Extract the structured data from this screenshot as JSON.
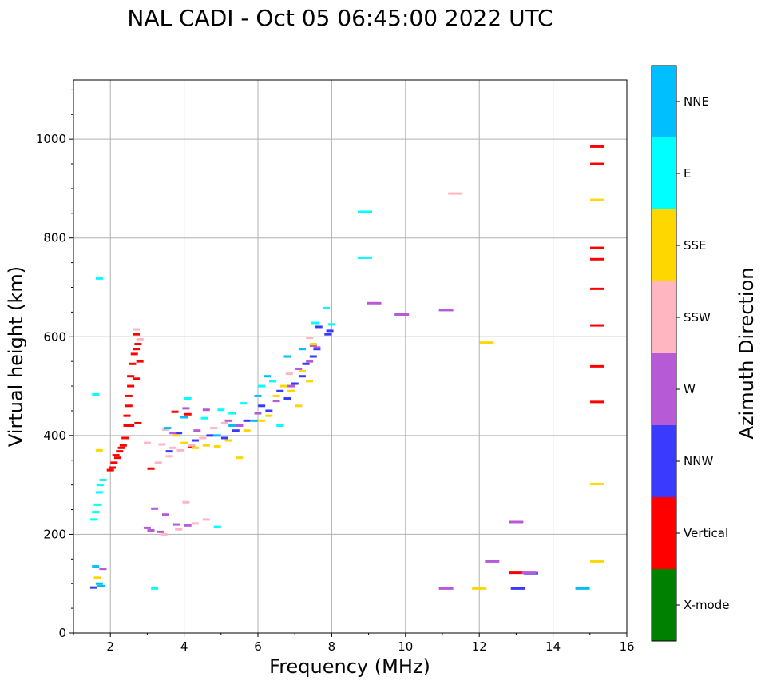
{
  "chart_data": {
    "type": "scatter",
    "title": "NAL CADI - Oct 05 06:45:00 2022 UTC",
    "xlabel": "Frequency (MHz)",
    "ylabel": "Virtual height (km)",
    "xlim": [
      1,
      16
    ],
    "ylim": [
      0,
      1120
    ],
    "grid": true,
    "xticks": [
      2,
      4,
      6,
      8,
      10,
      12,
      14,
      16
    ],
    "yticks": [
      0,
      200,
      400,
      600,
      800,
      1000
    ],
    "colorbar": {
      "label": "Azimuth Direction",
      "categories": [
        {
          "name": "X-mode",
          "color": "#008000"
        },
        {
          "name": "Vertical",
          "color": "#ff0000"
        },
        {
          "name": "NNW",
          "color": "#3a3aff"
        },
        {
          "name": "W",
          "color": "#b65ad6"
        },
        {
          "name": "SSW",
          "color": "#ffb6c1"
        },
        {
          "name": "SSE",
          "color": "#ffd700"
        },
        {
          "name": "E",
          "color": "#00ffff"
        },
        {
          "name": "NNE",
          "color": "#00bfff"
        }
      ]
    },
    "series": [
      {
        "name": "Vertical",
        "points": [
          [
            2.0,
            330
          ],
          [
            2.05,
            335
          ],
          [
            2.1,
            345
          ],
          [
            2.15,
            360
          ],
          [
            2.2,
            355
          ],
          [
            2.25,
            368
          ],
          [
            2.3,
            375
          ],
          [
            2.35,
            380
          ],
          [
            2.4,
            395
          ],
          [
            2.45,
            420
          ],
          [
            2.45,
            440
          ],
          [
            2.5,
            460
          ],
          [
            2.5,
            480
          ],
          [
            2.55,
            500
          ],
          [
            2.55,
            520
          ],
          [
            2.6,
            545
          ],
          [
            2.65,
            565
          ],
          [
            2.7,
            575
          ],
          [
            2.75,
            585
          ],
          [
            2.7,
            605
          ],
          [
            2.8,
            550
          ],
          [
            2.7,
            515
          ],
          [
            2.55,
            420
          ],
          [
            2.75,
            425
          ],
          [
            3.1,
            333
          ],
          [
            3.75,
            448
          ],
          [
            4.1,
            443
          ],
          [
            4.2,
            378
          ],
          [
            13.0,
            122
          ],
          [
            15.2,
            985
          ],
          [
            15.2,
            950
          ],
          [
            15.2,
            780
          ],
          [
            15.2,
            757
          ],
          [
            15.2,
            697
          ],
          [
            15.2,
            623
          ],
          [
            15.2,
            540
          ],
          [
            15.2,
            468
          ]
        ]
      },
      {
        "name": "NNW",
        "points": [
          [
            1.55,
            92
          ],
          [
            3.6,
            368
          ],
          [
            3.85,
            405
          ],
          [
            4.3,
            390
          ],
          [
            4.7,
            400
          ],
          [
            5.1,
            395
          ],
          [
            5.4,
            410
          ],
          [
            5.7,
            430
          ],
          [
            6.1,
            460
          ],
          [
            6.3,
            450
          ],
          [
            6.6,
            490
          ],
          [
            6.8,
            475
          ],
          [
            7.0,
            505
          ],
          [
            7.2,
            520
          ],
          [
            7.3,
            545
          ],
          [
            7.5,
            560
          ],
          [
            7.6,
            575
          ],
          [
            7.65,
            620
          ],
          [
            7.95,
            612
          ],
          [
            7.9,
            605
          ],
          [
            13.05,
            90
          ],
          [
            13.4,
            121
          ]
        ]
      },
      {
        "name": "W",
        "points": [
          [
            1.8,
            130
          ],
          [
            3.0,
            213
          ],
          [
            3.1,
            208
          ],
          [
            3.2,
            252
          ],
          [
            3.35,
            205
          ],
          [
            3.5,
            240
          ],
          [
            3.8,
            220
          ],
          [
            4.1,
            218
          ],
          [
            3.7,
            405
          ],
          [
            4.05,
            455
          ],
          [
            4.35,
            410
          ],
          [
            4.6,
            452
          ],
          [
            5.2,
            430
          ],
          [
            5.5,
            420
          ],
          [
            6.0,
            445
          ],
          [
            6.5,
            470
          ],
          [
            6.9,
            500
          ],
          [
            7.1,
            535
          ],
          [
            7.4,
            550
          ],
          [
            7.5,
            582
          ],
          [
            7.6,
            578
          ],
          [
            9.15,
            668
          ],
          [
            9.9,
            645
          ],
          [
            11.1,
            90
          ],
          [
            11.1,
            654
          ],
          [
            12.35,
            145
          ],
          [
            13.0,
            225
          ],
          [
            13.35,
            122
          ]
        ]
      },
      {
        "name": "SSW",
        "points": [
          [
            3.0,
            385
          ],
          [
            3.4,
            382
          ],
          [
            3.7,
            375
          ],
          [
            3.9,
            370
          ],
          [
            4.2,
            380
          ],
          [
            4.5,
            395
          ],
          [
            4.8,
            415
          ],
          [
            5.1,
            425
          ],
          [
            3.5,
            412
          ],
          [
            3.3,
            345
          ],
          [
            3.6,
            358
          ],
          [
            4.05,
            265
          ],
          [
            4.3,
            222
          ],
          [
            4.6,
            230
          ],
          [
            3.85,
            210
          ],
          [
            3.45,
            200
          ],
          [
            2.7,
            615
          ],
          [
            2.8,
            595
          ],
          [
            11.35,
            890
          ],
          [
            6.85,
            525
          ],
          [
            7.4,
            598
          ]
        ]
      },
      {
        "name": "SSE",
        "points": [
          [
            1.65,
            112
          ],
          [
            1.7,
            370
          ],
          [
            3.8,
            400
          ],
          [
            4.0,
            385
          ],
          [
            4.3,
            375
          ],
          [
            4.6,
            380
          ],
          [
            4.9,
            378
          ],
          [
            5.2,
            390
          ],
          [
            5.5,
            355
          ],
          [
            5.7,
            410
          ],
          [
            6.1,
            430
          ],
          [
            6.3,
            440
          ],
          [
            6.5,
            480
          ],
          [
            6.7,
            500
          ],
          [
            6.9,
            490
          ],
          [
            7.1,
            460
          ],
          [
            7.2,
            530
          ],
          [
            7.4,
            510
          ],
          [
            7.5,
            585
          ],
          [
            12.0,
            90
          ],
          [
            12.2,
            588
          ],
          [
            15.2,
            877
          ],
          [
            15.2,
            302
          ],
          [
            15.2,
            145
          ]
        ]
      },
      {
        "name": "E",
        "points": [
          [
            1.55,
            230
          ],
          [
            1.6,
            245
          ],
          [
            1.65,
            260
          ],
          [
            1.7,
            285
          ],
          [
            1.72,
            300
          ],
          [
            1.8,
            310
          ],
          [
            1.7,
            718
          ],
          [
            1.6,
            483
          ],
          [
            3.2,
            90
          ],
          [
            4.1,
            475
          ],
          [
            4.55,
            435
          ],
          [
            5.0,
            452
          ],
          [
            5.3,
            445
          ],
          [
            5.6,
            465
          ],
          [
            6.1,
            500
          ],
          [
            6.4,
            510
          ],
          [
            7.55,
            628
          ],
          [
            7.85,
            658
          ],
          [
            8.0,
            625
          ],
          [
            8.9,
            853
          ],
          [
            8.9,
            760
          ],
          [
            4.9,
            215
          ],
          [
            6.6,
            420
          ]
        ]
      },
      {
        "name": "NNE",
        "points": [
          [
            1.6,
            135
          ],
          [
            1.75,
            95
          ],
          [
            1.7,
            100
          ],
          [
            3.55,
            415
          ],
          [
            4.0,
            437
          ],
          [
            4.9,
            400
          ],
          [
            5.3,
            420
          ],
          [
            5.9,
            430
          ],
          [
            6.0,
            480
          ],
          [
            6.25,
            520
          ],
          [
            6.8,
            560
          ],
          [
            7.2,
            575
          ],
          [
            14.8,
            90
          ]
        ]
      },
      {
        "name": "X-mode",
        "points": []
      }
    ]
  }
}
